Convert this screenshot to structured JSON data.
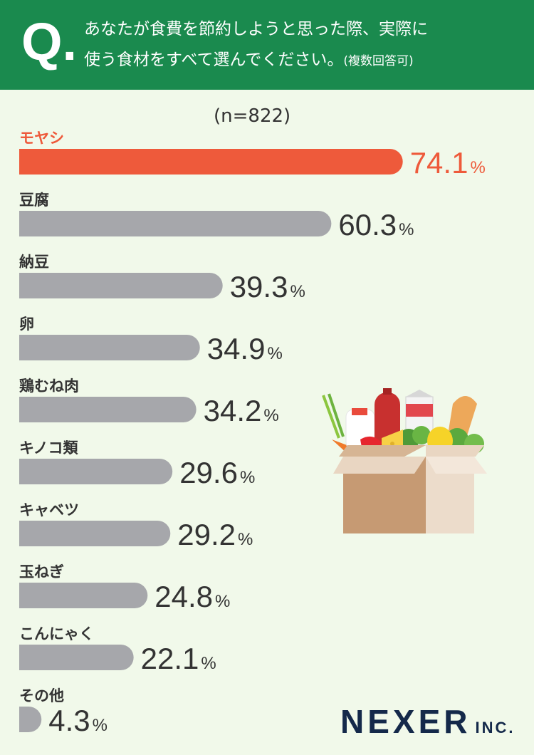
{
  "header": {
    "q_mark": "Q.",
    "question_line1": "あなたが食費を節約しようと思った際、実際に",
    "question_line2": "使う食材をすべて選んでください。",
    "question_note": "(複数回答可)"
  },
  "sample_size": "(n=822)",
  "brand": {
    "name": "NEXER",
    "suffix": "INC."
  },
  "colors": {
    "highlight": "#ee5a3b",
    "bar": "#a6a7ab",
    "header": "#1a8a4e",
    "background": "#f1f9ea"
  },
  "chart_data": {
    "type": "bar",
    "orientation": "horizontal",
    "unit": "%",
    "categories": [
      "モヤシ",
      "豆腐",
      "納豆",
      "卵",
      "鶏むね肉",
      "キノコ類",
      "キャベツ",
      "玉ねぎ",
      "こんにゃく",
      "その他"
    ],
    "values": [
      74.1,
      60.3,
      39.3,
      34.9,
      34.2,
      29.6,
      29.2,
      24.8,
      22.1,
      4.3
    ],
    "highlight_index": 0,
    "grid": false
  }
}
